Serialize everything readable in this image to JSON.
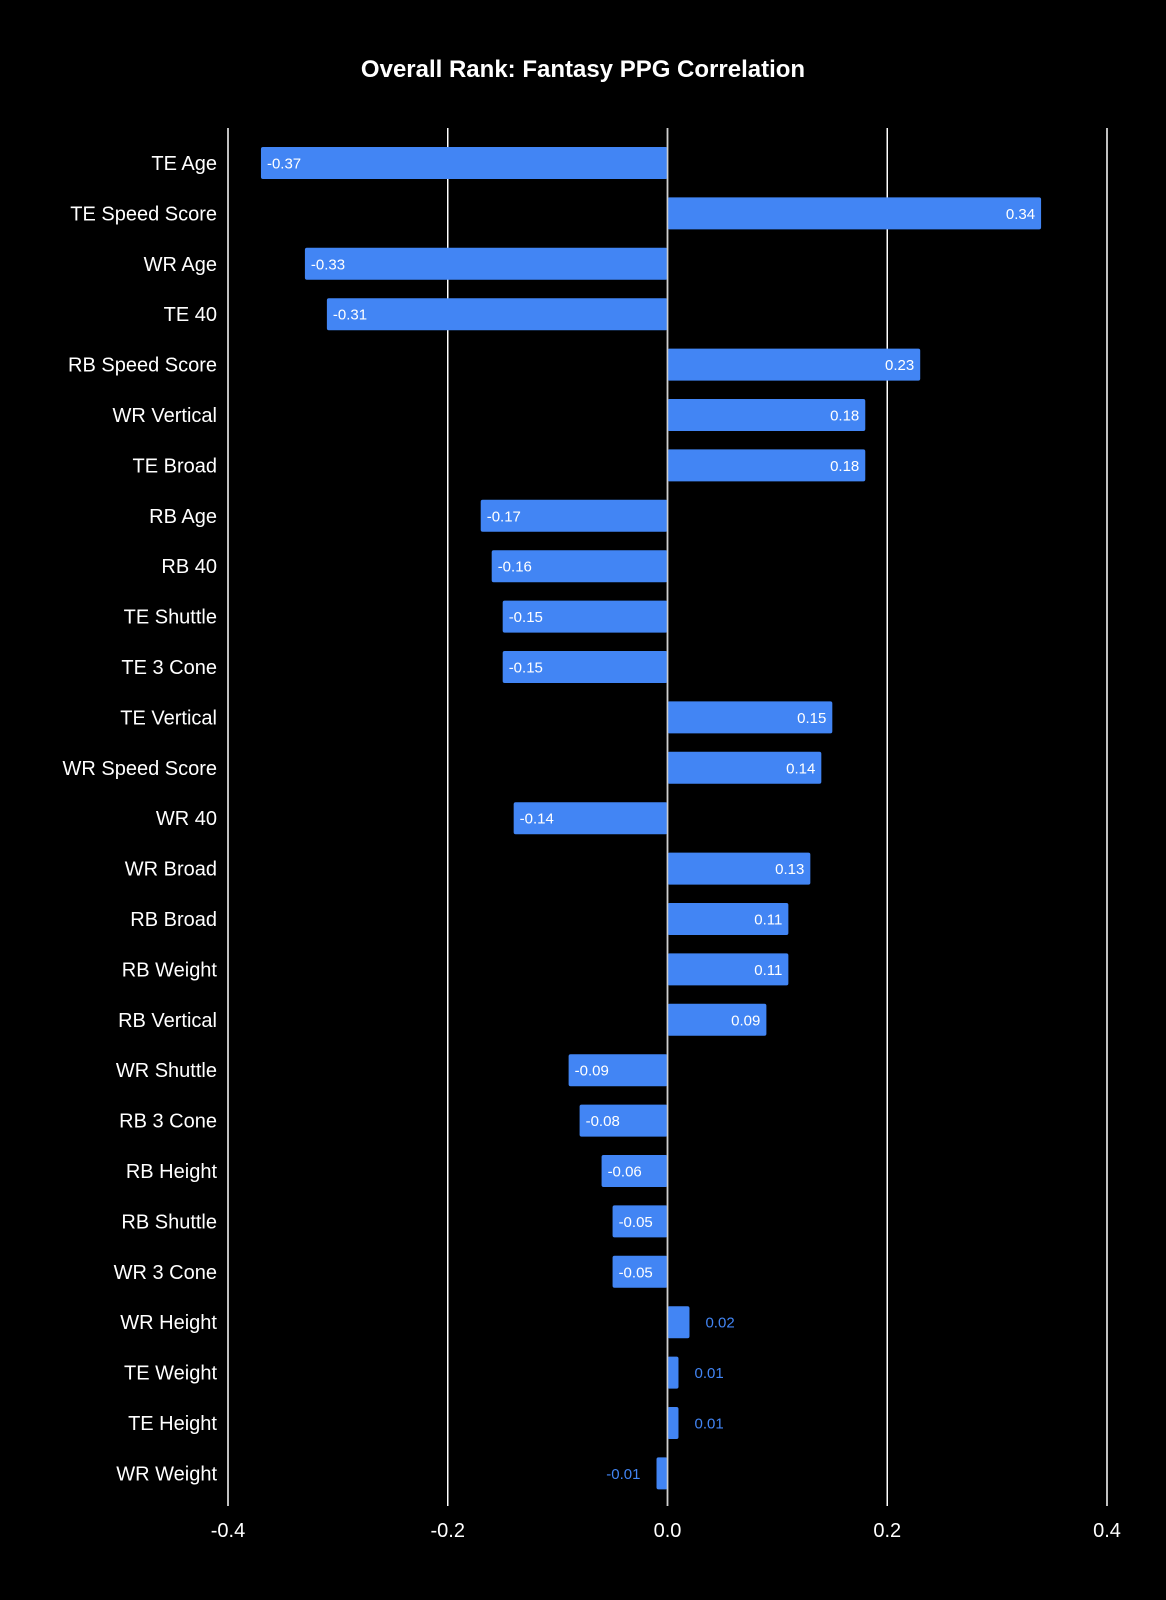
{
  "colors": {
    "background": "#000000",
    "bar": "#4285f4",
    "text": "#ffffff",
    "grid": "#ffffff"
  },
  "chart_data": {
    "type": "bar",
    "orientation": "horizontal",
    "title": "Overall Rank: Fantasy PPG Correlation",
    "xlabel": "",
    "ylabel": "",
    "xlim": [
      -0.4,
      0.4
    ],
    "x_ticks": [
      "-0.4",
      "-0.2",
      "0.0",
      "0.2",
      "0.4"
    ],
    "grid": true,
    "legend": "none",
    "categories": [
      "TE Age",
      "TE Speed Score",
      "WR Age",
      "TE 40",
      "RB Speed Score",
      "WR Vertical",
      "TE Broad",
      "RB Age",
      "RB 40",
      "TE Shuttle",
      "TE 3 Cone",
      "TE Vertical",
      "WR Speed Score",
      "WR 40",
      "WR Broad",
      "RB Broad",
      "RB Weight",
      "RB Vertical",
      "WR Shuttle",
      "RB 3 Cone",
      "RB Height",
      "RB Shuttle",
      "WR 3 Cone",
      "WR Height",
      "TE Weight",
      "TE Height",
      "WR Weight"
    ],
    "values": [
      -0.37,
      0.34,
      -0.33,
      -0.31,
      0.23,
      0.18,
      0.18,
      -0.17,
      -0.16,
      -0.15,
      -0.15,
      0.15,
      0.14,
      -0.14,
      0.13,
      0.11,
      0.11,
      0.09,
      -0.09,
      -0.08,
      -0.06,
      -0.05,
      -0.05,
      0.02,
      0.01,
      0.01,
      -0.01
    ],
    "data_labels": [
      "-0.37",
      "0.34",
      "-0.33",
      "-0.31",
      "0.23",
      "0.18",
      "0.18",
      "-0.17",
      "-0.16",
      "-0.15",
      "-0.15",
      "0.15",
      "0.14",
      "-0.14",
      "0.13",
      "0.11",
      "0.11",
      "0.09",
      "-0.09",
      "-0.08",
      "-0.06",
      "-0.05",
      "-0.05",
      "0.02",
      "0.01",
      "0.01",
      "-0.01"
    ]
  }
}
